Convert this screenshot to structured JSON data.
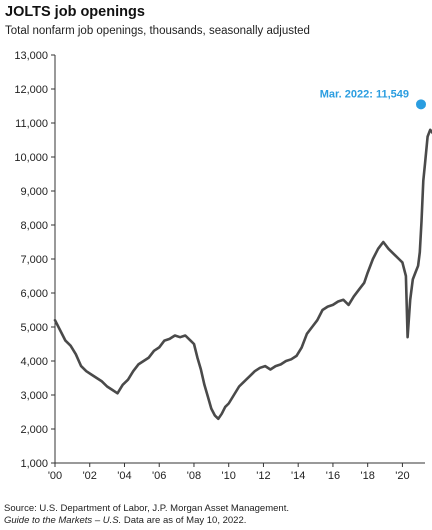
{
  "title": "JOLTS job openings",
  "subtitle": "Total nonfarm job openings, thousands, seasonally adjusted",
  "source": {
    "line1": "Source: U.S. Department of Labor, J.P. Morgan Asset Management.",
    "line2_italic": "Guide to the Markets – U.S.",
    "line2_rest": " Data are as of May 10, 2022."
  },
  "colors": {
    "line": "#4a4a4a",
    "highlight": "#2a9de0",
    "axis": "#333333"
  },
  "chart_data": {
    "type": "line",
    "title": "JOLTS job openings",
    "subtitle": "Total nonfarm job openings, thousands, seasonally adjusted",
    "ylim": [
      1000,
      13000
    ],
    "xlim": [
      2000,
      2021.3
    ],
    "yticks": [
      1000,
      2000,
      3000,
      4000,
      5000,
      6000,
      7000,
      8000,
      9000,
      10000,
      11000,
      12000,
      13000
    ],
    "ytick_labels": [
      "1,000",
      "2,000",
      "3,000",
      "4,000",
      "5,000",
      "6,000",
      "7,000",
      "8,000",
      "9,000",
      "10,000",
      "11,000",
      "12,000",
      "13,000"
    ],
    "xticks": [
      2000,
      2002,
      2004,
      2006,
      2008,
      2010,
      2012,
      2014,
      2016,
      2018,
      2020
    ],
    "xtick_labels": [
      "'00",
      "'02",
      "'04",
      "'06",
      "'08",
      "'10",
      "'12",
      "'14",
      "'16",
      "'18",
      "'20"
    ],
    "grid": false,
    "annotation": {
      "label": "Mar. 2022: 11,549",
      "x": 2021.25,
      "y": 11549
    },
    "series": [
      {
        "x": [
          2000.0,
          2000.3,
          2000.6,
          2000.9,
          2001.2,
          2001.5,
          2001.8,
          2002.1,
          2002.4,
          2002.7,
          2003.0,
          2003.3,
          2003.6,
          2003.9,
          2004.2,
          2004.5,
          2004.8,
          2005.1,
          2005.4,
          2005.7,
          2006.0,
          2006.3,
          2006.6,
          2006.9,
          2007.2,
          2007.5,
          2007.8,
          2008.0,
          2008.2,
          2008.4,
          2008.6,
          2008.8,
          2009.0,
          2009.2,
          2009.4,
          2009.6,
          2009.8,
          2010.0,
          2010.3,
          2010.6,
          2010.9,
          2011.2,
          2011.5,
          2011.8,
          2012.1,
          2012.4,
          2012.7,
          2013.0,
          2013.3,
          2013.6,
          2013.9,
          2014.2,
          2014.5,
          2014.8,
          2015.1,
          2015.4,
          2015.7,
          2016.0,
          2016.3,
          2016.6,
          2016.9,
          2017.2,
          2017.5,
          2017.8,
          2018.0,
          2018.3,
          2018.6,
          2018.9,
          2019.2,
          2019.5,
          2019.8,
          2020.0,
          2020.2,
          2020.3,
          2020.45,
          2020.6,
          2020.75,
          2020.9,
          2021.0,
          2021.1,
          2021.2,
          2021.3,
          2021.45,
          2021.6,
          2021.75,
          2021.9,
          2022.0,
          2022.1,
          2022.2
        ],
        "values": [
          5200,
          4900,
          4600,
          4450,
          4200,
          3850,
          3700,
          3600,
          3500,
          3400,
          3250,
          3150,
          3050,
          3300,
          3450,
          3700,
          3900,
          4000,
          4100,
          4300,
          4400,
          4600,
          4650,
          4750,
          4700,
          4750,
          4600,
          4500,
          4100,
          3750,
          3300,
          2950,
          2600,
          2400,
          2300,
          2450,
          2650,
          2750,
          3000,
          3250,
          3400,
          3550,
          3700,
          3800,
          3850,
          3750,
          3850,
          3900,
          4000,
          4050,
          4150,
          4400,
          4800,
          5000,
          5200,
          5500,
          5600,
          5650,
          5750,
          5800,
          5650,
          5900,
          6100,
          6300,
          6600,
          7000,
          7300,
          7500,
          7300,
          7150,
          7000,
          6900,
          6500,
          4700,
          5800,
          6400,
          6600,
          6800,
          7200,
          8100,
          9300,
          9800,
          10600,
          10800,
          10700,
          11000,
          11300,
          11300,
          11549
        ]
      }
    ]
  }
}
